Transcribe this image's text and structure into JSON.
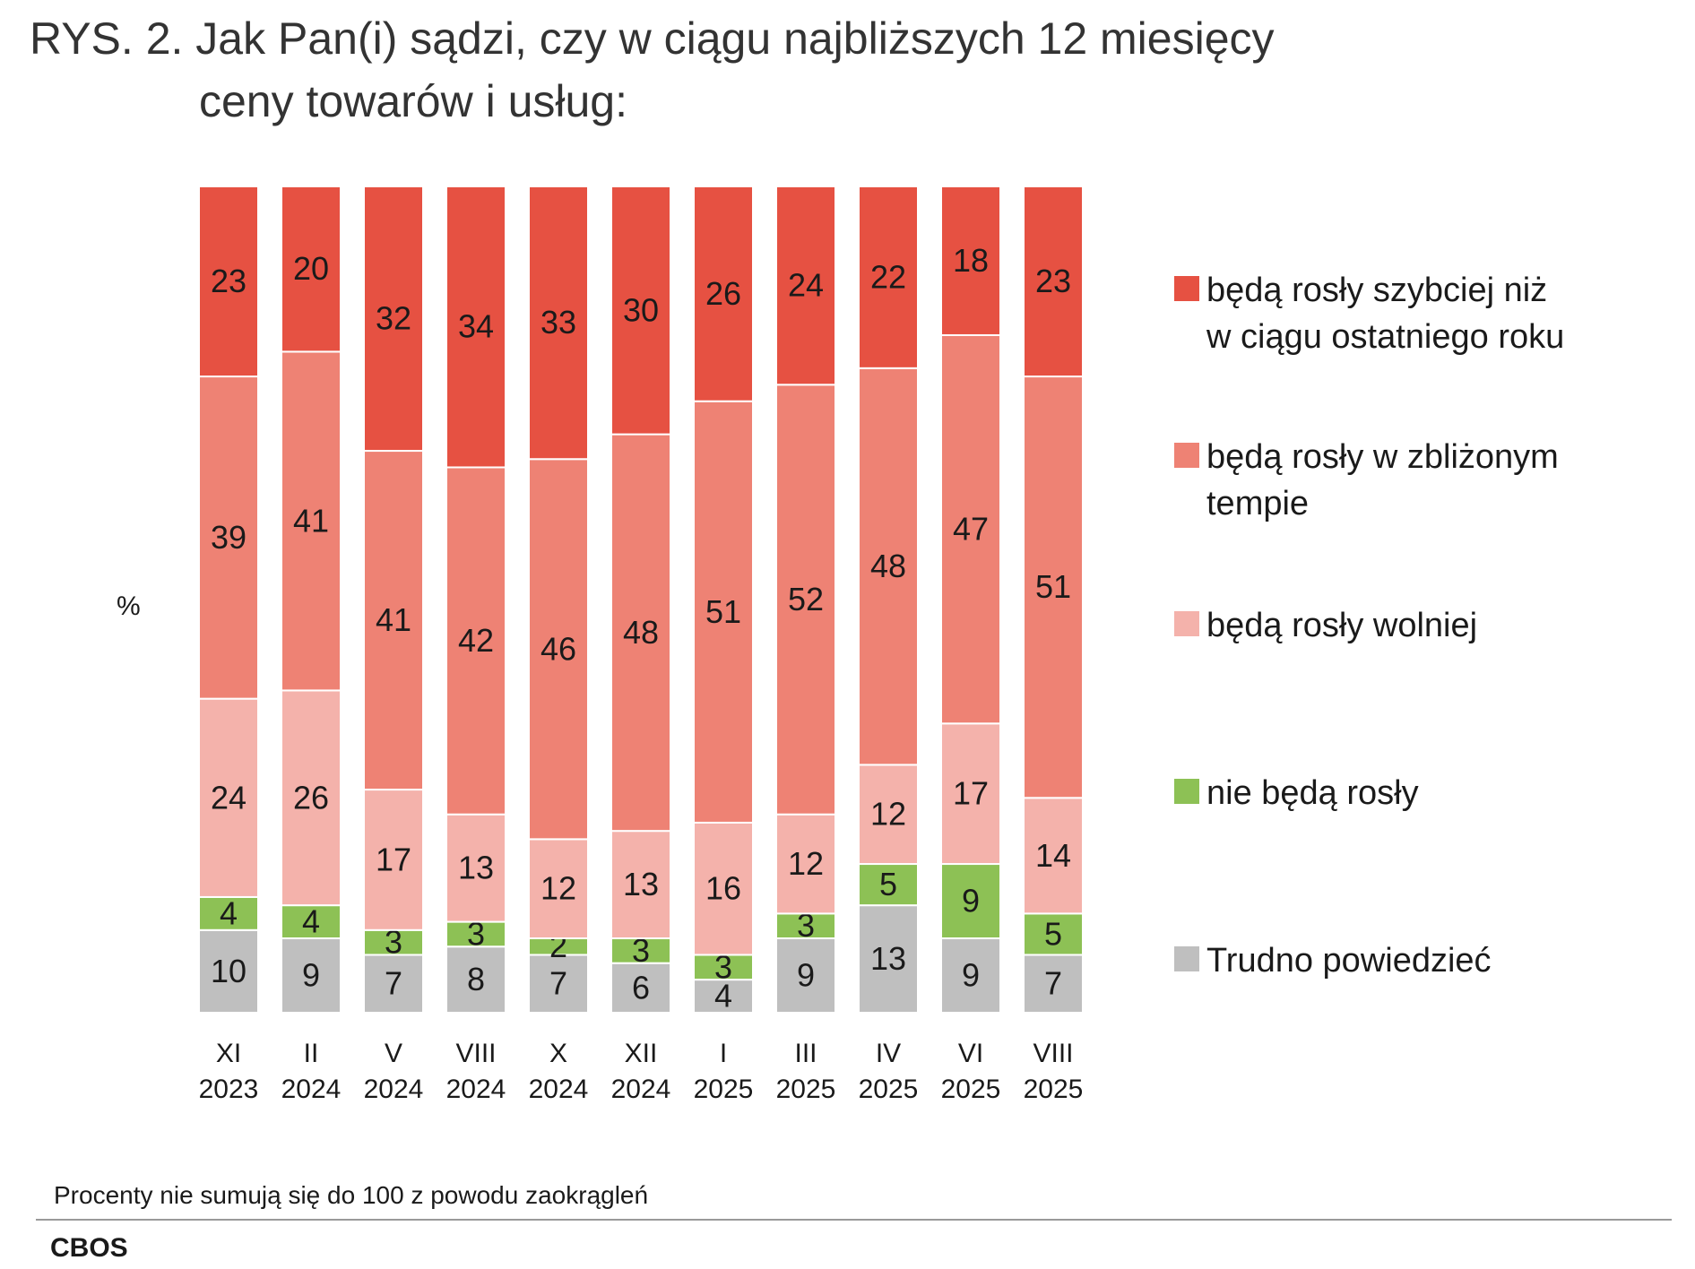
{
  "title_line1": "RYS. 2. Jak Pan(i) sądzi, czy w ciągu najbliższych 12 miesięcy",
  "title_line2": "ceny towarów i usług:",
  "ylabel": "%",
  "note": "Procenty nie sumują się do 100 z powodu zaokrągleń",
  "source": "CBOS",
  "chart_data": {
    "type": "bar",
    "stacked": true,
    "orientation": "vertical",
    "categories": [
      [
        "XI",
        "2023"
      ],
      [
        "II",
        "2024"
      ],
      [
        "V",
        "2024"
      ],
      [
        "VIII",
        "2024"
      ],
      [
        "X",
        "2024"
      ],
      [
        "XII",
        "2024"
      ],
      [
        "I",
        "2025"
      ],
      [
        "III",
        "2025"
      ],
      [
        "IV",
        "2025"
      ],
      [
        "VI",
        "2025"
      ],
      [
        "VIII",
        "2025"
      ]
    ],
    "ylabel": "%",
    "legend_position": "right",
    "series": [
      {
        "name": "Trudno powiedzieć",
        "color": "#bfbfbf",
        "values": [
          10,
          9,
          7,
          8,
          7,
          6,
          4,
          9,
          13,
          9,
          7
        ]
      },
      {
        "name": "nie będą rosły",
        "color": "#8dc155",
        "values": [
          4,
          4,
          3,
          3,
          2,
          3,
          3,
          3,
          5,
          9,
          5
        ]
      },
      {
        "name": "będą rosły wolniej",
        "color": "#f4b2ab",
        "values": [
          24,
          26,
          17,
          13,
          12,
          13,
          16,
          12,
          12,
          17,
          14
        ]
      },
      {
        "name": "będą rosły w zbliżonym tempie",
        "color": "#ee8274",
        "values": [
          39,
          41,
          41,
          42,
          46,
          48,
          51,
          52,
          48,
          47,
          51
        ]
      },
      {
        "name": "będą rosły szybciej niż w ciągu ostatniego roku",
        "color": "#e65142",
        "values": [
          23,
          20,
          32,
          34,
          33,
          30,
          26,
          24,
          22,
          18,
          23
        ]
      }
    ],
    "legend_order": [
      4,
      3,
      2,
      1,
      0
    ],
    "legend_lines": [
      [
        "będą rosły szybciej niż",
        "w ciągu ostatniego roku"
      ],
      [
        "będą rosły w zbliżonym",
        "tempie"
      ],
      [
        "będą rosły wolniej"
      ],
      [
        "nie będą rosły"
      ],
      [
        "Trudno powiedzieć"
      ]
    ]
  }
}
